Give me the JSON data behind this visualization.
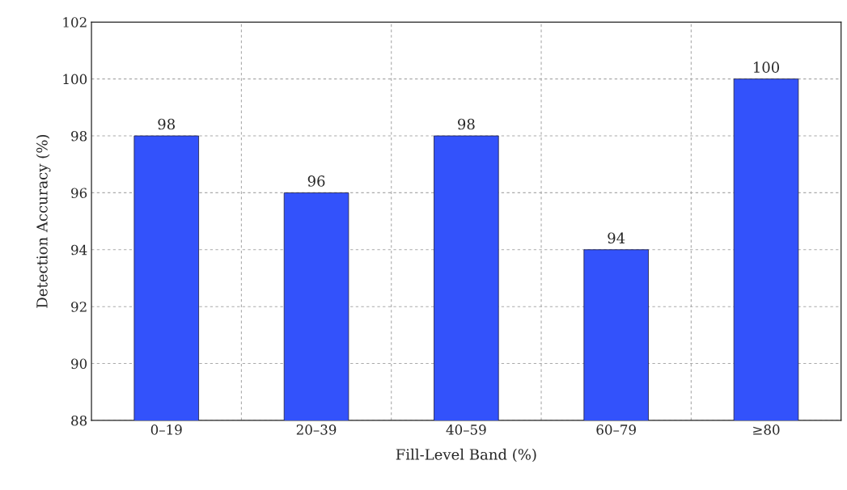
{
  "chart_data": {
    "type": "bar",
    "xlabel": "Fill-Level Band (%)",
    "ylabel": "Detection Accuracy (%)",
    "categories": [
      "0–19",
      "20–39",
      "40–59",
      "60–79",
      "≥80"
    ],
    "values": [
      98,
      96,
      98,
      94,
      100
    ],
    "color": "#3352fb",
    "ylim": [
      88,
      102
    ],
    "yticks": [
      88,
      90,
      92,
      94,
      96,
      98,
      100,
      102
    ],
    "grid": true,
    "data_labels": true
  }
}
